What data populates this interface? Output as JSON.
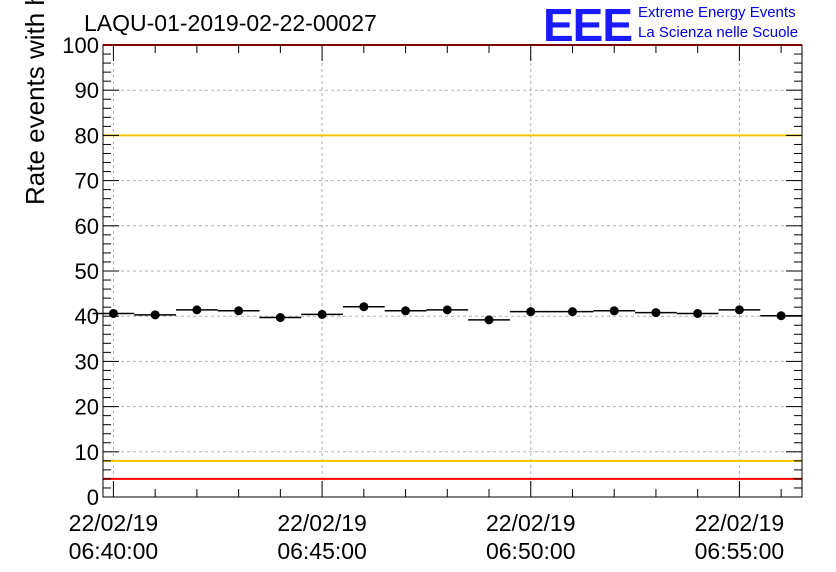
{
  "chart_data": {
    "type": "scatter",
    "title": "LAQU-01-2019-02-22-00027",
    "ylabel": "Rate events with hits [Hz]",
    "xlabel": "",
    "ylim": [
      0,
      100
    ],
    "yticks": [
      0,
      10,
      20,
      30,
      40,
      50,
      60,
      70,
      80,
      90,
      100
    ],
    "x_unit": "minutes after 22/02/19 06:40:00",
    "xlim": [
      -0.25,
      16.5
    ],
    "xticks": [
      {
        "value": 0,
        "date": "22/02/19",
        "time": "06:40:00"
      },
      {
        "value": 5,
        "date": "22/02/19",
        "time": "06:45:00"
      },
      {
        "value": 10,
        "date": "22/02/19",
        "time": "06:50:00"
      },
      {
        "value": 15,
        "date": "22/02/19",
        "time": "06:55:00"
      }
    ],
    "grid": true,
    "bin_width_minutes": 1,
    "series": [
      {
        "name": "rate",
        "x": [
          0,
          1,
          2,
          3,
          4,
          5,
          6,
          7,
          8,
          9,
          10,
          11,
          12,
          13,
          14,
          15,
          16
        ],
        "y": [
          40.6,
          40.3,
          41.4,
          41.2,
          39.7,
          40.4,
          42.1,
          41.2,
          41.4,
          39.2,
          41.0,
          41.0,
          41.2,
          40.8,
          40.6,
          41.4,
          40.1
        ]
      }
    ],
    "reference_lines": [
      {
        "name": "upper-warning",
        "y": 80,
        "color": "#f2c500"
      },
      {
        "name": "lower-warning",
        "y": 8,
        "color": "#f2c500"
      },
      {
        "name": "lower-alarm",
        "y": 4,
        "color": "#ff0000"
      },
      {
        "name": "upper-alarm",
        "y": 100,
        "color": "#ff0000"
      }
    ]
  },
  "logo": {
    "mark": "EEE",
    "line1": "Extreme Energy Events",
    "line2": "La Scienza nelle Scuole",
    "color": "#1a1aff"
  }
}
